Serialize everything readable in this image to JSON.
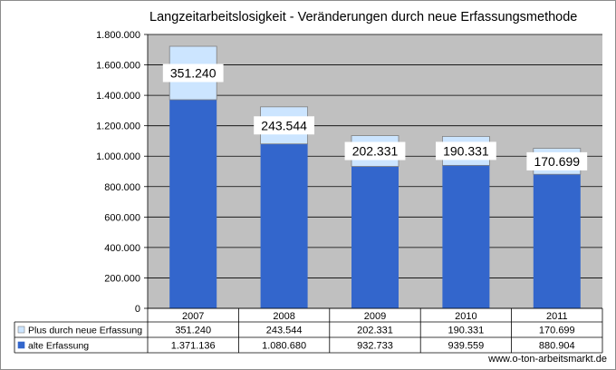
{
  "title": "Langzeitarbeitslosigkeit - Veränderungen durch neue Erfassungsmethode",
  "source": "www.o-ton-arbeitsmarkt.de",
  "colors": {
    "plot_bg": "#c0c0c0",
    "alte": "#3366cc",
    "plus": "#cce5ff",
    "bar_border": "#808080"
  },
  "chart_data": {
    "type": "bar",
    "stacked": true,
    "categories": [
      "2007",
      "2008",
      "2009",
      "2010",
      "2011"
    ],
    "series": [
      {
        "name": "alte Erfassung",
        "values": [
          1371136,
          1080680,
          932733,
          939559,
          880904
        ],
        "labels": [
          "1.371.136",
          "1.080.680",
          "932.733",
          "939.559",
          "880.904"
        ]
      },
      {
        "name": "Plus durch neue Erfassung",
        "values": [
          351240,
          243544,
          202331,
          190331,
          170699
        ],
        "labels": [
          "351.240",
          "243.544",
          "202.331",
          "190.331",
          "170.699"
        ]
      }
    ],
    "yticks": [
      "0",
      "200.000",
      "400.000",
      "600.000",
      "800.000",
      "1.000.000",
      "1.200.000",
      "1.400.000",
      "1.600.000",
      "1.800.000"
    ],
    "ylim": [
      0,
      1800000
    ],
    "grid": true,
    "legend": "data-table-left"
  }
}
